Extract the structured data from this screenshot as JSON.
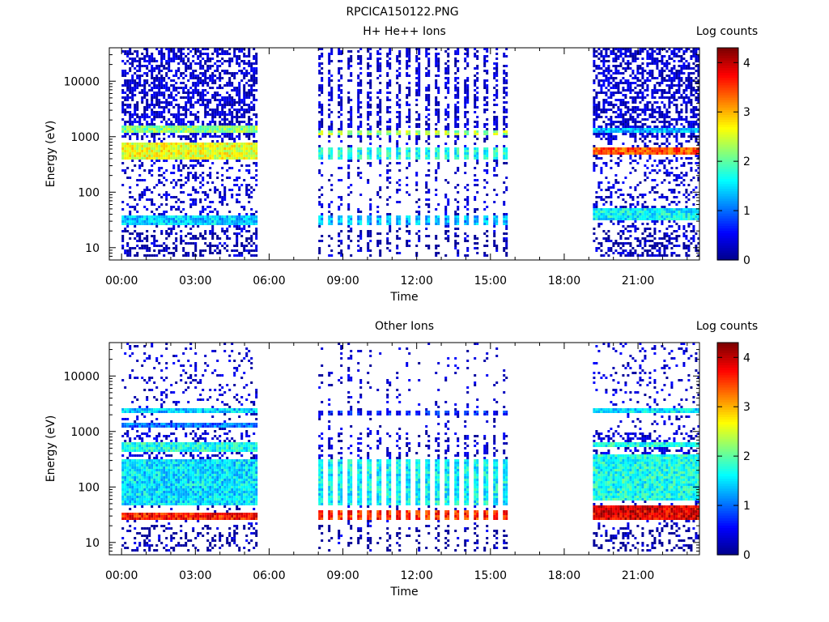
{
  "window_title": "RPCICA150122.PNG",
  "colors": {
    "colormap": [
      "#00008f",
      "#0000ff",
      "#0080ff",
      "#00ffff",
      "#80ff80",
      "#ffff00",
      "#ff8000",
      "#ff0000",
      "#800000"
    ],
    "background": "#ffffff",
    "axis": "#000000"
  },
  "chart_data": [
    {
      "type": "heatmap",
      "title": "H+ He++ Ions",
      "xlabel": "Time",
      "ylabel": "Energy (eV)",
      "y_scale": "log",
      "ylim": [
        6,
        40000
      ],
      "xlim": [
        "-00:30",
        "23:30"
      ],
      "x_tick_labels": [
        "00:00",
        "03:00",
        "06:00",
        "09:00",
        "12:00",
        "15:00",
        "18:00",
        "21:00"
      ],
      "y_tick_labels": [
        "10",
        "100",
        "1000",
        "10000"
      ],
      "colorbar": {
        "label": "Log counts",
        "range": [
          0,
          4.3
        ],
        "tick_labels": [
          "0",
          "1",
          "2",
          "3",
          "4"
        ]
      },
      "data_intervals": [
        [
          "00:00",
          "05:30"
        ],
        [
          "08:00",
          "15:50"
        ],
        [
          "19:10",
          "23:30"
        ]
      ],
      "intervals_pattern": [
        "continuous",
        "striped",
        "continuous"
      ],
      "bands": [
        {
          "interval": 0,
          "energy_eV": [
            1250,
            1700
          ],
          "level": 2.2
        },
        {
          "interval": 0,
          "energy_eV": [
            400,
            800
          ],
          "level": 2.6
        },
        {
          "interval": 0,
          "energy_eV": [
            28,
            42
          ],
          "level": 1.4
        },
        {
          "interval": 1,
          "energy_eV": [
            1150,
            1400
          ],
          "level": 2.3
        },
        {
          "interval": 1,
          "energy_eV": [
            400,
            700
          ],
          "level": 1.7
        },
        {
          "interval": 1,
          "energy_eV": [
            28,
            42
          ],
          "level": 1.3
        },
        {
          "interval": 2,
          "energy_eV": [
            1250,
            1500
          ],
          "level": 1.3
        },
        {
          "interval": 2,
          "energy_eV": [
            520,
            700
          ],
          "level": 3.4
        },
        {
          "interval": 2,
          "energy_eV": [
            32,
            55
          ],
          "level": 1.6
        }
      ]
    },
    {
      "type": "heatmap",
      "title": "Other Ions",
      "xlabel": "Time",
      "ylabel": "Energy (eV)",
      "y_scale": "log",
      "ylim": [
        6,
        40000
      ],
      "xlim": [
        "-00:30",
        "23:30"
      ],
      "x_tick_labels": [
        "00:00",
        "03:00",
        "06:00",
        "09:00",
        "12:00",
        "15:00",
        "18:00",
        "21:00"
      ],
      "y_tick_labels": [
        "10",
        "100",
        "1000",
        "10000"
      ],
      "colorbar": {
        "label": "Log counts",
        "range": [
          0,
          4.3
        ],
        "tick_labels": [
          "0",
          "1",
          "2",
          "3",
          "4"
        ]
      },
      "data_intervals": [
        [
          "00:00",
          "05:30"
        ],
        [
          "08:00",
          "15:50"
        ],
        [
          "19:10",
          "23:30"
        ]
      ],
      "intervals_pattern": [
        "continuous",
        "striped",
        "continuous"
      ],
      "bands": [
        {
          "interval": 0,
          "energy_eV": [
            2200,
            2900
          ],
          "level": 1.4
        },
        {
          "interval": 0,
          "energy_eV": [
            1200,
            1500
          ],
          "level": 1.0
        },
        {
          "interval": 0,
          "energy_eV": [
            450,
            700
          ],
          "level": 1.7
        },
        {
          "interval": 0,
          "energy_eV": [
            50,
            350
          ],
          "level": 1.5
        },
        {
          "interval": 0,
          "energy_eV": [
            26,
            38
          ],
          "level": 3.7
        },
        {
          "interval": 1,
          "energy_eV": [
            2000,
            2500
          ],
          "level": 0.6
        },
        {
          "interval": 1,
          "energy_eV": [
            50,
            350
          ],
          "level": 1.6
        },
        {
          "interval": 1,
          "energy_eV": [
            26,
            42
          ],
          "level": 3.6
        },
        {
          "interval": 2,
          "energy_eV": [
            2200,
            2800
          ],
          "level": 1.5
        },
        {
          "interval": 2,
          "energy_eV": [
            550,
            700
          ],
          "level": 1.7
        },
        {
          "interval": 2,
          "energy_eV": [
            60,
            400
          ],
          "level": 1.7
        },
        {
          "interval": 2,
          "energy_eV": [
            26,
            48
          ],
          "level": 3.9
        }
      ]
    }
  ]
}
